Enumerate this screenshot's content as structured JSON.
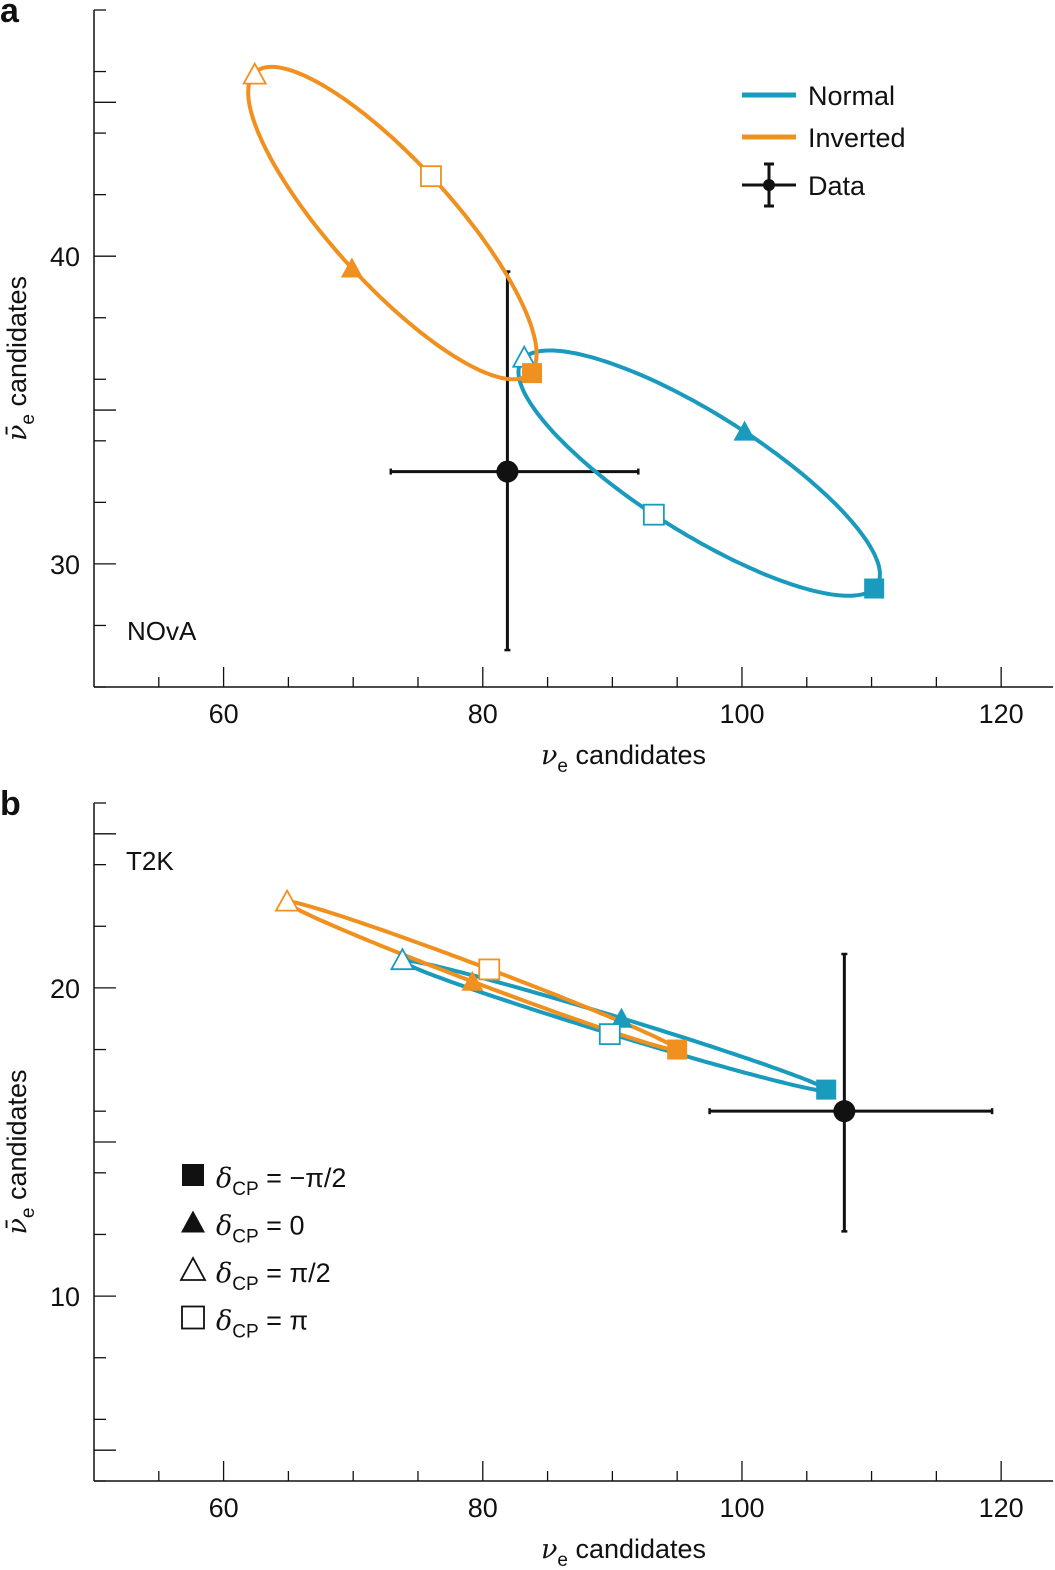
{
  "colors": {
    "Normal": "#1a9bbd",
    "Inverted": "#f0901e",
    "Data": "#111111"
  },
  "legend": {
    "hierarchy": [
      "Normal",
      "Inverted",
      "Data"
    ],
    "markers": [
      {
        "shape": "filled-square",
        "symbol": "δ",
        "sub": "CP",
        "label": "= −π/2"
      },
      {
        "shape": "filled-triangle",
        "symbol": "δ",
        "sub": "CP",
        "label": "= 0"
      },
      {
        "shape": "open-triangle",
        "symbol": "δ",
        "sub": "CP",
        "label": "= π/2"
      },
      {
        "shape": "open-square",
        "symbol": "δ",
        "sub": "CP",
        "label": "= π"
      }
    ]
  },
  "chart_data": [
    {
      "type": "line",
      "panel_label": "a",
      "annotation": "NOvA",
      "xlabel": {
        "symbol": "ν",
        "sub": "e",
        "text": "candidates"
      },
      "ylabel": {
        "symbol": "ν̄",
        "sub": "e",
        "text": "candidates"
      },
      "xlim": [
        50,
        124
      ],
      "ylim": [
        26,
        48
      ],
      "xticks": [
        60,
        80,
        100,
        120
      ],
      "yticks": [
        30,
        40
      ],
      "legend_position": "top-right",
      "series": [
        {
          "name": "Normal",
          "points": {
            "-pi/2": [
              110.2,
              29.2
            ],
            "0": [
              100.2,
              34.3
            ],
            "pi/2": [
              83.2,
              36.7
            ],
            "pi": [
              93.2,
              31.6
            ]
          }
        },
        {
          "name": "Inverted",
          "points": {
            "-pi/2": [
              83.8,
              36.2
            ],
            "0": [
              69.9,
              39.6
            ],
            "pi/2": [
              62.4,
              45.9
            ],
            "pi": [
              76.0,
              42.6
            ]
          }
        }
      ],
      "data": {
        "name": "Data",
        "x": 81.9,
        "y": 33.0,
        "x_err": [
          72.9,
          92.0
        ],
        "y_err": [
          27.2,
          39.5
        ]
      }
    },
    {
      "type": "line",
      "panel_label": "b",
      "annotation": "T2K",
      "xlabel": {
        "symbol": "ν",
        "sub": "e",
        "text": "candidates"
      },
      "ylabel": {
        "symbol": "ν̄",
        "sub": "e",
        "text": "candidates"
      },
      "xlim": [
        50,
        124
      ],
      "ylim": [
        4,
        26
      ],
      "xticks": [
        60,
        80,
        100,
        120
      ],
      "yticks": [
        10,
        20
      ],
      "legend_position": "bottom-left",
      "series": [
        {
          "name": "Normal",
          "points": {
            "-pi/2": [
              106.5,
              16.7
            ],
            "0": [
              90.7,
              19.0
            ],
            "pi/2": [
              73.8,
              20.9
            ],
            "pi": [
              89.8,
              18.5
            ]
          }
        },
        {
          "name": "Inverted",
          "points": {
            "-pi/2": [
              95.0,
              18.0
            ],
            "0": [
              79.2,
              20.2
            ],
            "pi/2": [
              64.9,
              22.8
            ],
            "pi": [
              80.5,
              20.6
            ]
          }
        }
      ],
      "data": {
        "name": "Data",
        "x": 107.9,
        "y": 16.0,
        "x_err": [
          97.5,
          119.3
        ],
        "y_err": [
          12.1,
          21.1
        ]
      }
    }
  ]
}
